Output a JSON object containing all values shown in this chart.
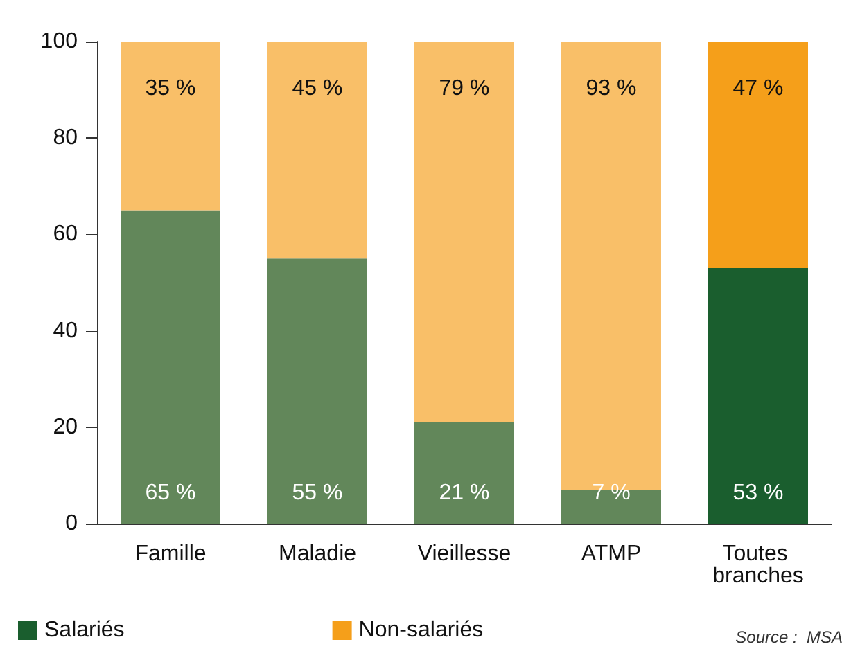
{
  "chart_data": {
    "type": "bar",
    "stacked": true,
    "categories": [
      "Famille",
      "Maladie",
      "Vieillesse",
      "ATMP",
      "Toutes branches"
    ],
    "series": [
      {
        "name": "Salariés",
        "color": "#1a5e2e",
        "colors": [
          "#62875a",
          "#62875a",
          "#62875a",
          "#62875a",
          "#1a5e2e"
        ],
        "values": [
          65,
          55,
          21,
          7,
          53
        ],
        "value_labels": [
          "65 %",
          "55 %",
          "21 %",
          "7 %",
          "53 %"
        ]
      },
      {
        "name": "Non-salariés",
        "color": "#f59f1a",
        "colors": [
          "#f9bf68",
          "#f9bf68",
          "#f9bf68",
          "#f9bf68",
          "#f59f1a"
        ],
        "values": [
          35,
          45,
          79,
          93,
          47
        ],
        "value_labels": [
          "35 %",
          "45 %",
          "79 %",
          "93 %",
          "47 %"
        ]
      }
    ],
    "ylim": [
      0,
      100
    ],
    "yticks": [
      0,
      20,
      40,
      60,
      80,
      100
    ],
    "grid": false,
    "legend": "bottom left",
    "annotations": [
      "Source :  MSA"
    ]
  }
}
